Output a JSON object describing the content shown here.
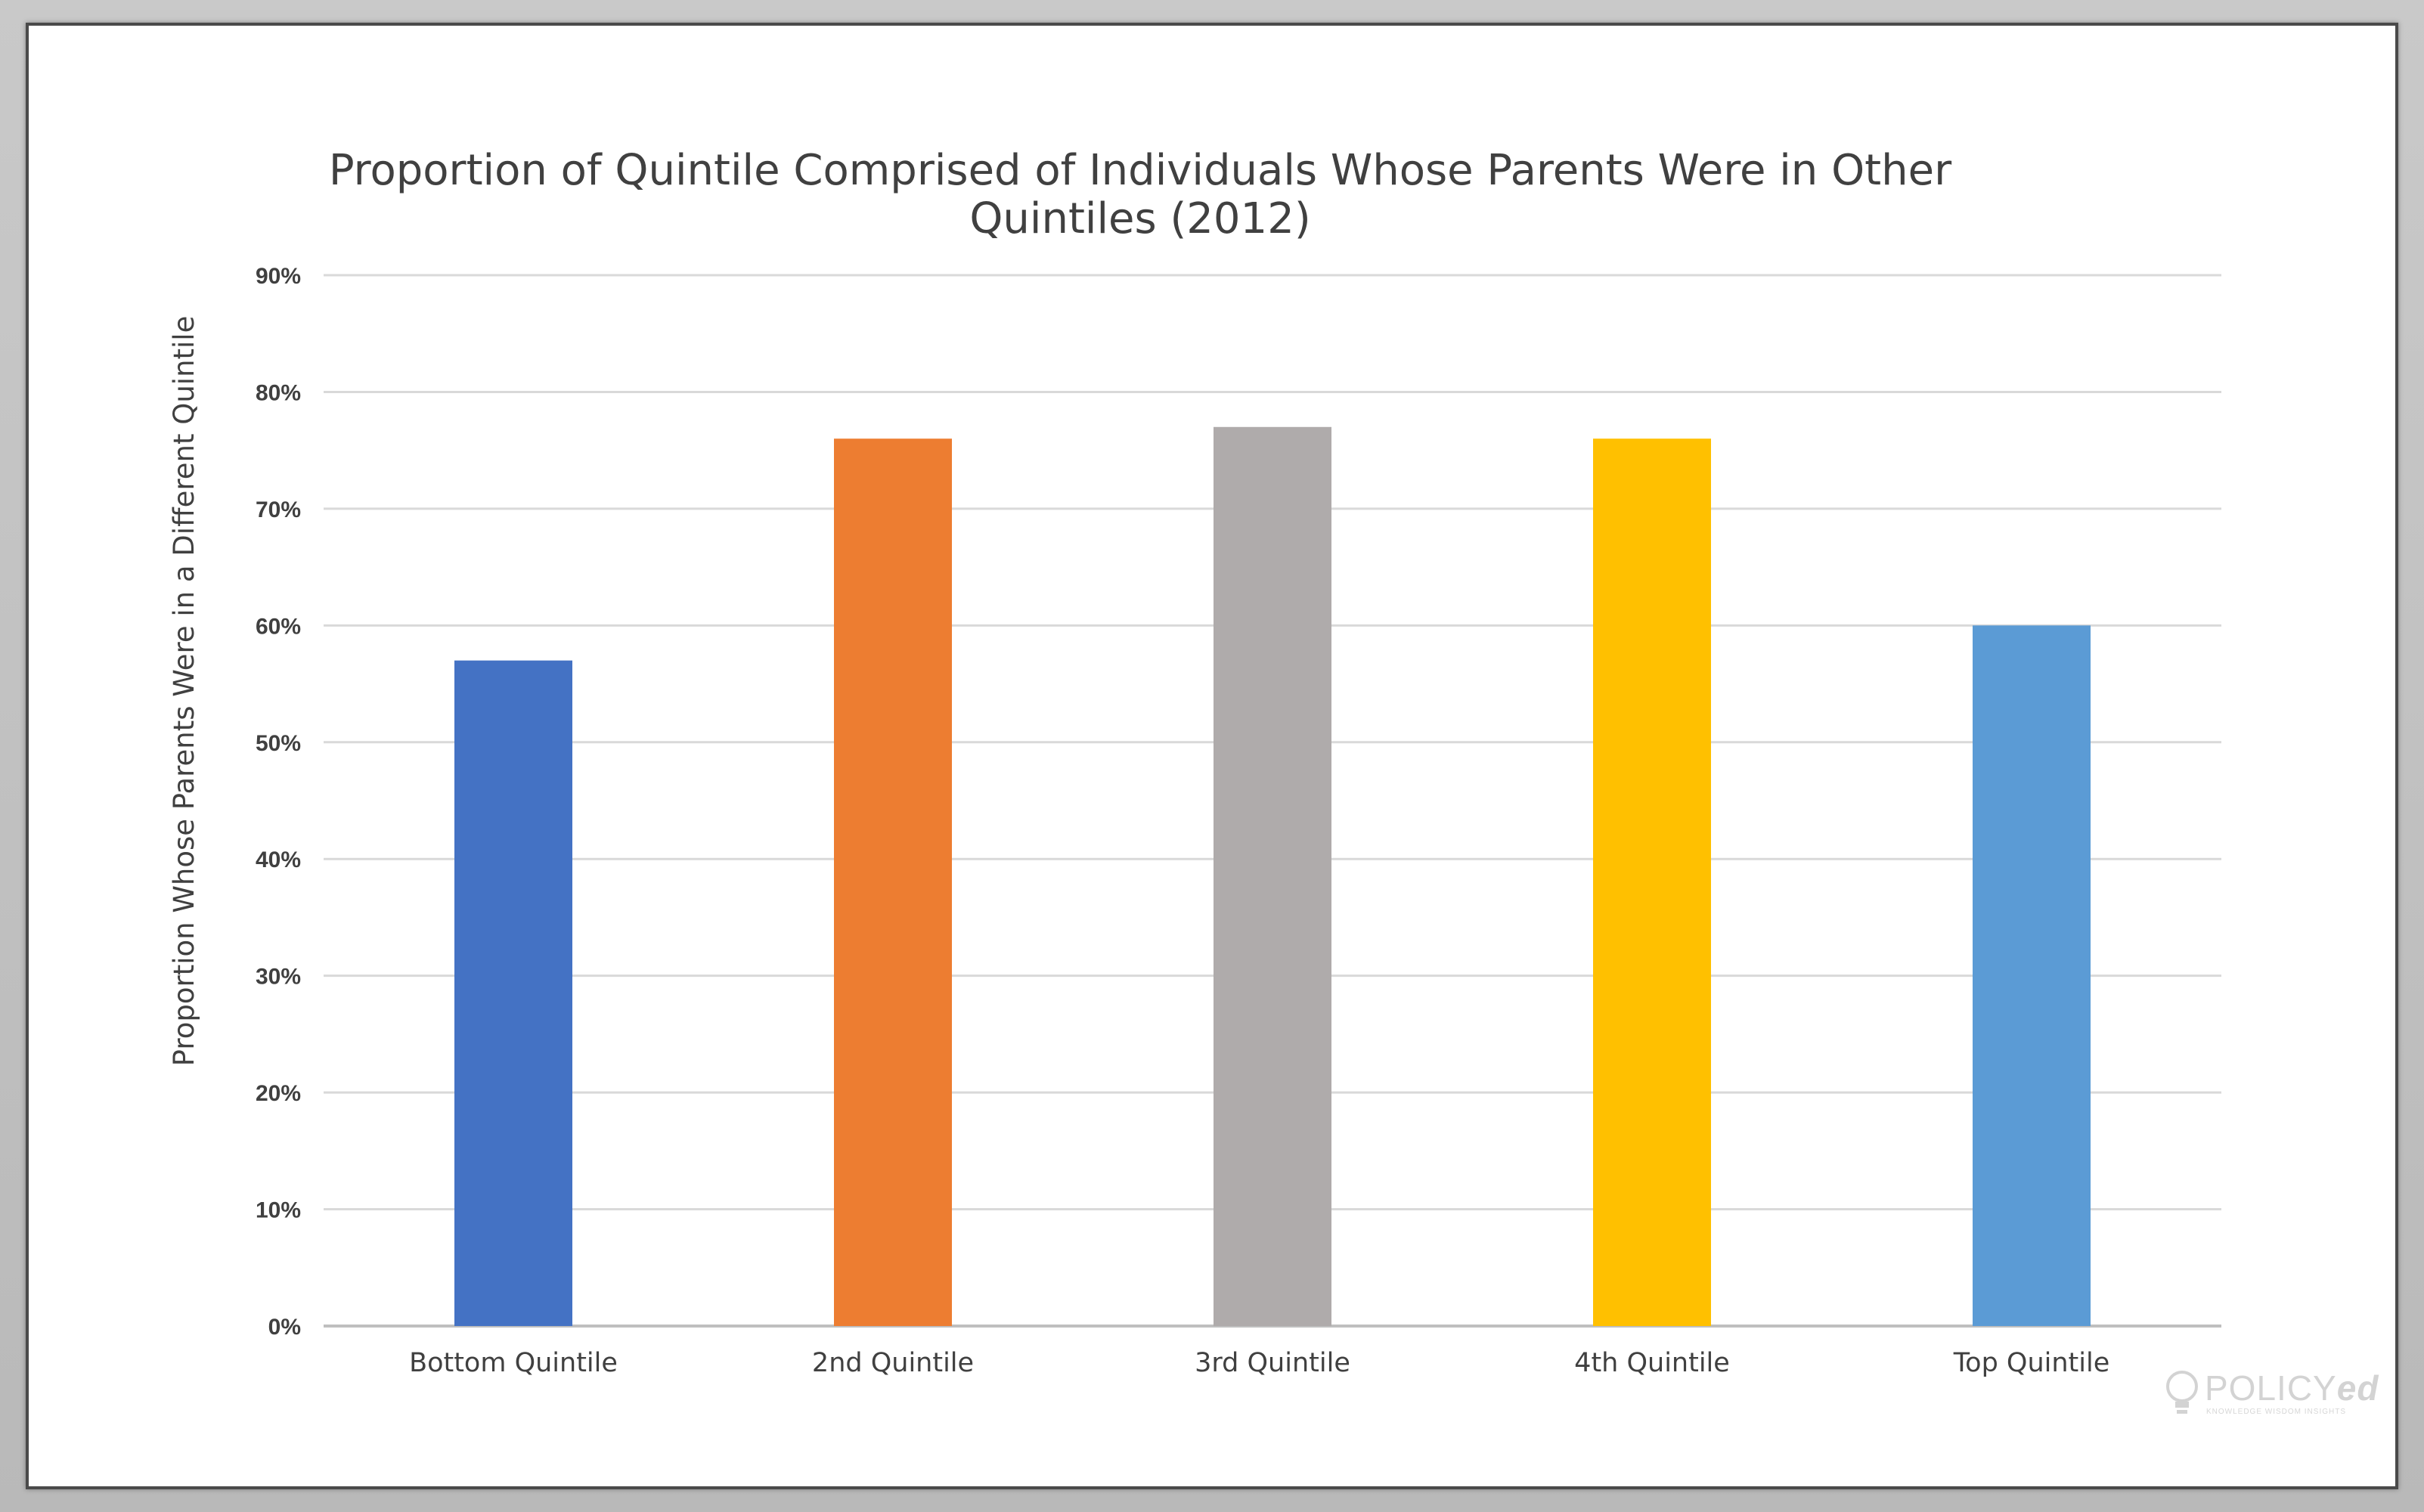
{
  "chart_data": {
    "type": "bar",
    "title_lines": [
      "Proportion of Quintile Comprised of Individuals Whose Parents Were in Other",
      "Quintiles (2012)"
    ],
    "xlabel": "",
    "ylabel": "Proportion Whose Parents Were in a Different Quintile",
    "categories": [
      "Bottom Quintile",
      "2nd Quintile",
      "3rd Quintile",
      "4th Quintile",
      "Top Quintile"
    ],
    "values": [
      0.57,
      0.76,
      0.77,
      0.76,
      0.6
    ],
    "colors": [
      "#4472C4",
      "#ED7D31",
      "#AFABAB",
      "#FFC000",
      "#5B9BD5"
    ],
    "ylim": [
      0,
      0.9
    ],
    "yticks": [
      "0%",
      "10%",
      "20%",
      "30%",
      "40%",
      "50%",
      "60%",
      "70%",
      "80%",
      "90%"
    ],
    "grid": true,
    "legend": "none"
  },
  "watermark": {
    "brand_prefix": "POLICY",
    "brand_suffix": "ed",
    "tagline": "KNOWLEDGE  WISDOM  INSIGHTS"
  }
}
